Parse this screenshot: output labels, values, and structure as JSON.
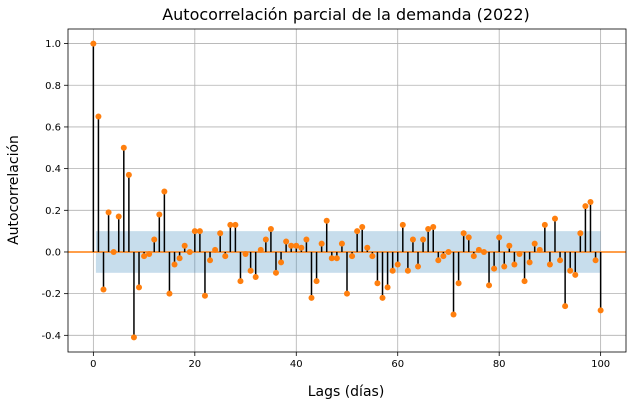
{
  "chart_data": {
    "type": "stem",
    "title": "Autocorrelación parcial de la demanda (2022)",
    "xlabel": "Lags (días)",
    "ylabel": "Autocorrelación",
    "xlim": [
      -5,
      105
    ],
    "ylim": [
      -0.48,
      1.07
    ],
    "xticks": [
      0,
      20,
      40,
      60,
      80,
      100
    ],
    "yticks": [
      -0.4,
      -0.2,
      0.0,
      0.2,
      0.4,
      0.6,
      0.8,
      1.0
    ],
    "grid": true,
    "confidence_band": [
      -0.1,
      0.1
    ],
    "colors": {
      "marker": "#ff7f0e",
      "stem": "#000000",
      "band": "#1f77b4",
      "zero_line": "#ff7f0e"
    },
    "lags": [
      0,
      1,
      2,
      3,
      4,
      5,
      6,
      7,
      8,
      9,
      10,
      11,
      12,
      13,
      14,
      15,
      16,
      17,
      18,
      19,
      20,
      21,
      22,
      23,
      24,
      25,
      26,
      27,
      28,
      29,
      30,
      31,
      32,
      33,
      34,
      35,
      36,
      37,
      38,
      39,
      40,
      41,
      42,
      43,
      44,
      45,
      46,
      47,
      48,
      49,
      50,
      51,
      52,
      53,
      54,
      55,
      56,
      57,
      58,
      59,
      60,
      61,
      62,
      63,
      64,
      65,
      66,
      67,
      68,
      69,
      70,
      71,
      72,
      73,
      74,
      75,
      76,
      77,
      78,
      79,
      80,
      81,
      82,
      83,
      84,
      85,
      86,
      87,
      88,
      89,
      90,
      91,
      92,
      93,
      94,
      95,
      96,
      97,
      98,
      99,
      100
    ],
    "values": [
      1.0,
      0.65,
      -0.18,
      0.19,
      0.0,
      0.17,
      0.5,
      0.37,
      -0.41,
      -0.17,
      -0.02,
      -0.01,
      0.06,
      0.18,
      0.29,
      -0.2,
      -0.06,
      -0.03,
      0.03,
      0.0,
      0.1,
      0.1,
      -0.21,
      -0.04,
      0.01,
      0.09,
      -0.02,
      0.13,
      0.13,
      -0.14,
      -0.01,
      -0.09,
      -0.12,
      0.01,
      0.06,
      0.11,
      -0.1,
      -0.05,
      0.05,
      0.03,
      0.03,
      0.02,
      0.06,
      -0.22,
      -0.14,
      0.04,
      0.15,
      -0.03,
      -0.03,
      0.04,
      -0.2,
      -0.02,
      0.1,
      0.12,
      0.02,
      -0.02,
      -0.15,
      -0.22,
      -0.17,
      -0.09,
      -0.06,
      0.13,
      -0.09,
      0.06,
      -0.07,
      0.06,
      0.11,
      0.12,
      -0.04,
      -0.02,
      0.0,
      -0.3,
      -0.15,
      0.09,
      0.07,
      -0.02,
      0.01,
      0.0,
      -0.16,
      -0.08,
      0.07,
      -0.07,
      0.03,
      -0.06,
      -0.01,
      -0.14,
      -0.05,
      0.04,
      0.01,
      0.13,
      -0.06,
      0.16,
      -0.04,
      -0.26,
      -0.09,
      -0.11,
      0.09,
      0.22,
      0.24,
      -0.04,
      -0.28
    ]
  }
}
